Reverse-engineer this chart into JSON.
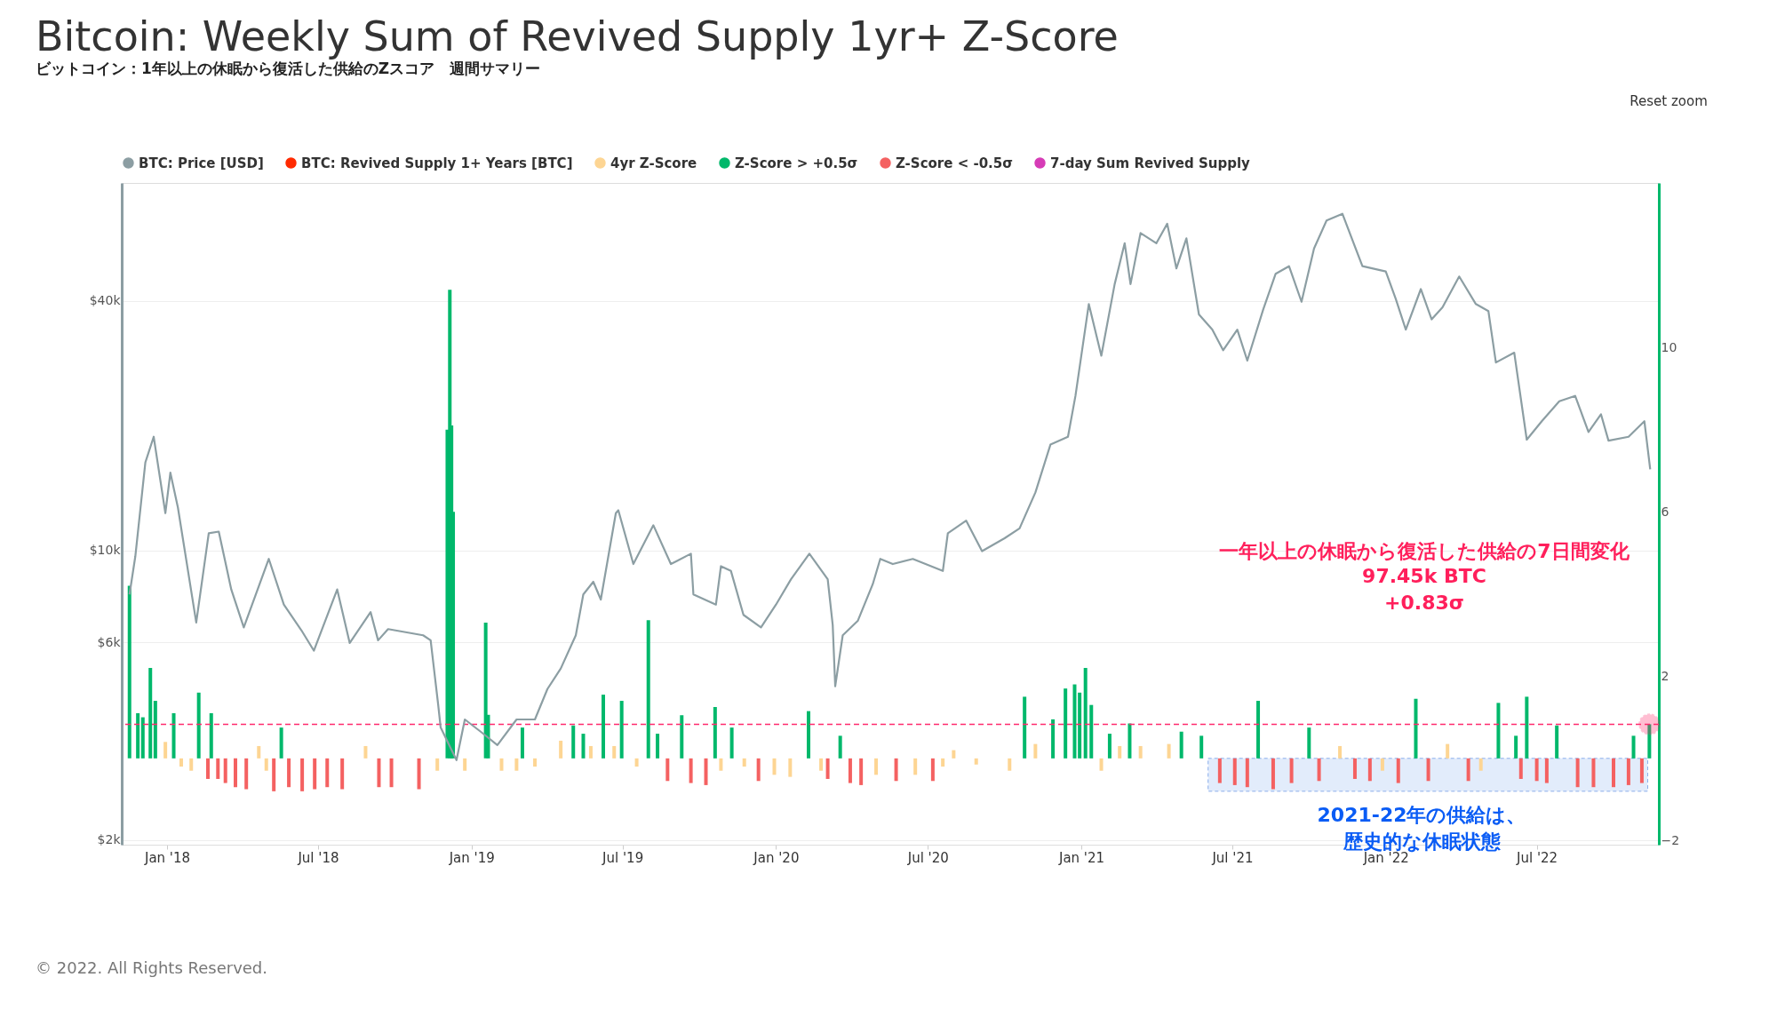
{
  "chart_data": {
    "type": "line",
    "title": "Bitcoin: Weekly Sum of Revived Supply 1yr+ Z-Score",
    "subtitle": "ビットコイン：1年以上の休眠から復活した供給のZスコア　週間サマリー",
    "series": [
      {
        "name": "BTC: Price [USD]",
        "color": "#8c9ea3",
        "x": [
          "2017-11-17",
          "2017-11-24",
          "2017-12-06",
          "2017-12-16",
          "2017-12-30",
          "2018-01-05",
          "2018-01-14",
          "2018-02-05",
          "2018-02-20",
          "2018-03-04",
          "2018-03-19",
          "2018-04-03",
          "2018-05-03",
          "2018-05-21",
          "2018-06-11",
          "2018-06-26",
          "2018-07-24",
          "2018-08-08",
          "2018-09-02",
          "2018-09-11",
          "2018-09-23",
          "2018-11-04",
          "2018-11-13",
          "2018-11-22",
          "2018-11-25",
          "2018-12-14",
          "2018-12-24",
          "2019-01-13",
          "2019-02-01",
          "2019-02-24",
          "2019-03-18",
          "2019-04-02",
          "2019-04-18",
          "2019-05-06",
          "2019-05-15",
          "2019-05-27",
          "2019-06-05",
          "2019-06-23",
          "2019-06-26",
          "2019-07-14",
          "2019-08-07",
          "2019-08-28",
          "2019-09-21",
          "2019-09-24",
          "2019-10-21",
          "2019-10-27",
          "2019-11-08",
          "2019-11-23",
          "2019-12-14",
          "2020-01-01",
          "2020-01-19",
          "2020-02-10",
          "2020-03-03",
          "2020-03-09",
          "2020-03-12",
          "2020-03-21",
          "2020-04-08",
          "2020-04-26",
          "2020-05-05",
          "2020-05-20",
          "2020-06-13",
          "2020-07-19",
          "2020-07-25",
          "2020-08-16",
          "2020-09-04",
          "2020-10-01",
          "2020-10-19",
          "2020-11-07",
          "2020-11-25",
          "2020-12-16",
          "2020-12-25",
          "2021-01-10",
          "2021-01-25",
          "2021-02-10",
          "2021-02-22",
          "2021-03-01",
          "2021-03-13",
          "2021-04-01",
          "2021-04-14",
          "2021-04-25",
          "2021-05-07",
          "2021-05-22",
          "2021-06-07",
          "2021-06-20",
          "2021-07-07",
          "2021-07-19",
          "2021-08-07",
          "2021-08-22",
          "2021-09-07",
          "2021-09-22",
          "2021-10-07",
          "2021-10-22",
          "2021-11-10",
          "2021-12-04",
          "2022-01-01",
          "2022-01-13",
          "2022-01-25",
          "2022-02-12",
          "2022-02-25",
          "2022-03-10",
          "2022-03-30",
          "2022-04-19",
          "2022-05-04",
          "2022-05-13",
          "2022-06-04",
          "2022-06-19",
          "2022-07-07",
          "2022-07-28",
          "2022-08-16",
          "2022-09-01",
          "2022-09-16",
          "2022-09-25",
          "2022-10-19",
          "2022-11-07",
          "2022-11-14"
        ],
        "values": [
          7830,
          9680,
          16300,
          18800,
          12300,
          15400,
          12700,
          6700,
          11000,
          11100,
          8050,
          6520,
          9540,
          7400,
          6420,
          5730,
          8050,
          5980,
          7100,
          6070,
          6460,
          6240,
          6070,
          4250,
          3740,
          3120,
          3910,
          3640,
          3390,
          3910,
          3910,
          4630,
          5190,
          6240,
          7830,
          8400,
          7610,
          12300,
          12500,
          9270,
          11500,
          9270,
          9820,
          7830,
          7400,
          9160,
          8920,
          6990,
          6520,
          7400,
          8520,
          9820,
          8520,
          6610,
          4700,
          6240,
          6760,
          8290,
          9540,
          9270,
          9540,
          8920,
          11000,
          11800,
          9960,
          10700,
          11300,
          13800,
          18000,
          18800,
          23600,
          39300,
          29500,
          43900,
          55100,
          43900,
          58300,
          55100,
          61400,
          47900,
          56600,
          37100,
          34100,
          30400,
          34100,
          28700,
          38100,
          46500,
          48500,
          39800,
          53500,
          62500,
          64900,
          48500,
          47100,
          40400,
          34100,
          42700,
          36100,
          38600,
          45800,
          39300,
          37800,
          28400,
          30000,
          18500,
          20500,
          22900,
          23600,
          19300,
          21300,
          18400,
          18800,
          20500,
          15700
        ]
      },
      {
        "name": "BTC: Revived Supply 1+ Years [BTC]",
        "type": "line",
        "axis": "y2",
        "color": "#ff2a00"
      },
      {
        "name": "4yr Z-Score",
        "type": "bar",
        "axis": "y2",
        "color": "#fdd593",
        "x": [
          "2017-12-30",
          "2018-01-18",
          "2018-01-30",
          "2018-04-21",
          "2018-04-30",
          "2018-08-27",
          "2018-11-21",
          "2018-12-24",
          "2019-02-06",
          "2019-02-24",
          "2019-03-18",
          "2019-04-18",
          "2019-05-24",
          "2019-06-21",
          "2019-07-18",
          "2019-10-27",
          "2019-11-24",
          "2019-12-30",
          "2020-01-18",
          "2020-02-24",
          "2020-04-30",
          "2020-06-16",
          "2020-07-19",
          "2020-08-01",
          "2020-08-28",
          "2020-10-07",
          "2020-11-07",
          "2021-01-25",
          "2021-02-16",
          "2021-03-13",
          "2021-04-16",
          "2021-11-07",
          "2021-12-28",
          "2022-03-16",
          "2022-04-25"
        ],
        "values": [
          0.4,
          -0.2,
          -0.3,
          0.3,
          -0.3,
          0.3,
          -0.3,
          -0.3,
          -0.3,
          -0.3,
          -0.2,
          0.43,
          0.3,
          0.3,
          -0.2,
          -0.3,
          -0.2,
          -0.4,
          -0.45,
          -0.3,
          -0.4,
          -0.4,
          -0.2,
          0.2,
          -0.15,
          -0.3,
          0.35,
          -0.3,
          0.3,
          0.3,
          0.35,
          0.3,
          -0.3,
          0.35,
          -0.3
        ]
      },
      {
        "name": "Z-Score > +0.5σ",
        "type": "bar",
        "axis": "y2",
        "color": "#00b86b",
        "x": [
          "2017-11-17",
          "2017-11-27",
          "2017-12-03",
          "2017-12-12",
          "2017-12-18",
          "2018-01-09",
          "2018-02-08",
          "2018-02-23",
          "2018-05-18",
          "2018-12-01",
          "2018-12-03",
          "2018-12-06",
          "2018-12-08",
          "2018-12-10",
          "2019-01-18",
          "2019-01-21",
          "2019-03-03",
          "2019-05-03",
          "2019-05-15",
          "2019-06-08",
          "2019-06-30",
          "2019-08-01",
          "2019-08-12",
          "2019-09-10",
          "2019-10-20",
          "2019-11-09",
          "2020-02-09",
          "2020-03-18",
          "2020-10-25",
          "2020-11-28",
          "2020-12-13",
          "2020-12-24",
          "2020-12-30",
          "2021-01-06",
          "2021-01-13",
          "2021-02-04",
          "2021-02-28",
          "2021-05-01",
          "2021-05-25",
          "2021-08-01",
          "2021-10-01",
          "2022-02-06",
          "2022-05-16",
          "2022-06-06",
          "2022-06-19",
          "2022-07-25",
          "2022-10-25",
          "2022-11-13"
        ],
        "values": [
          4.2,
          1.1,
          1.0,
          2.2,
          1.4,
          1.1,
          1.6,
          1.1,
          0.75,
          null,
          8.0,
          11.4,
          8.1,
          6.0,
          3.3,
          1.06,
          0.75,
          0.8,
          0.6,
          1.55,
          1.4,
          3.36,
          0.6,
          1.05,
          1.25,
          0.75,
          1.15,
          0.55,
          1.5,
          0.95,
          1.7,
          1.8,
          1.6,
          2.2,
          1.3,
          0.6,
          0.85,
          0.65,
          0.55,
          1.4,
          0.75,
          1.45,
          1.35,
          0.55,
          1.5,
          0.8,
          0.55,
          0.83
        ]
      },
      {
        "name": "Z-Score < -0.5σ",
        "type": "bar",
        "axis": "y2",
        "color": "#f46161",
        "x": [
          "2018-02-19",
          "2018-03-03",
          "2018-03-12",
          "2018-03-24",
          "2018-04-06",
          "2018-05-09",
          "2018-05-27",
          "2018-06-12",
          "2018-06-27",
          "2018-07-12",
          "2018-07-30",
          "2018-09-12",
          "2018-09-27",
          "2018-10-30",
          "2019-08-24",
          "2019-09-21",
          "2019-10-09",
          "2019-12-11",
          "2020-03-03",
          "2020-03-30",
          "2020-04-12",
          "2020-05-24",
          "2020-07-07",
          "2021-06-16",
          "2021-07-04",
          "2021-07-19",
          "2021-08-19",
          "2021-09-10",
          "2021-10-13",
          "2021-11-25",
          "2021-12-13",
          "2022-01-16",
          "2022-02-21",
          "2022-04-10",
          "2022-06-12",
          "2022-07-01",
          "2022-07-13",
          "2022-08-19",
          "2022-09-07",
          "2022-10-01",
          "2022-10-19",
          "2022-11-04"
        ],
        "values": [
          -0.5,
          -0.5,
          -0.6,
          -0.7,
          -0.75,
          -0.8,
          -0.7,
          -0.8,
          -0.75,
          -0.7,
          -0.75,
          -0.7,
          -0.7,
          -0.75,
          -0.55,
          -0.6,
          -0.65,
          -0.55,
          -0.5,
          -0.6,
          -0.65,
          -0.55,
          -0.55,
          -0.6,
          -0.65,
          -0.7,
          -0.75,
          -0.6,
          -0.55,
          -0.5,
          -0.55,
          -0.6,
          -0.55,
          -0.55,
          -0.5,
          -0.55,
          -0.6,
          -0.7,
          -0.7,
          -0.7,
          -0.65,
          -0.6
        ]
      },
      {
        "name": "7-day Sum Revived Supply",
        "type": "line",
        "axis": "y2",
        "color": "#d63cb6"
      },
      {
        "type": "scatter",
        "axis": "y2",
        "color": "#ff2a6d",
        "x": [
          "2022-11-13"
        ],
        "values": [
          0.83
        ]
      }
    ],
    "xlim": [
      "2017-11-13",
      "2022-11-19"
    ],
    "xticks": [
      {
        "value": "2018-01-01",
        "label": "Jan '18"
      },
      {
        "value": "2018-07-01",
        "label": "Jul '18"
      },
      {
        "value": "2019-01-01",
        "label": "Jan '19"
      },
      {
        "value": "2019-07-01",
        "label": "Jul '19"
      },
      {
        "value": "2020-01-01",
        "label": "Jan '20"
      },
      {
        "value": "2020-07-01",
        "label": "Jul '20"
      },
      {
        "value": "2021-01-01",
        "label": "Jan '21"
      },
      {
        "value": "2021-07-01",
        "label": "Jul '21"
      },
      {
        "value": "2022-01-01",
        "label": "Jan '22"
      },
      {
        "value": "2022-07-01",
        "label": "Jul '22"
      }
    ],
    "ylim": [
      1950,
      77000
    ],
    "yticks": [
      {
        "value": 2000,
        "label": "$2k"
      },
      {
        "value": 6000,
        "label": "$6k"
      },
      {
        "value": 10000,
        "label": "$10k"
      },
      {
        "value": 40000,
        "label": "$40k"
      }
    ],
    "y2lim": [
      -2.1,
      14
    ],
    "y2ticks": [
      -2,
      2,
      6,
      10
    ],
    "log": "y",
    "grid": "y",
    "legend": "top",
    "ref_lines": [
      {
        "axis": "y2",
        "value": 0.83,
        "color": "#ff2a6d",
        "line_style": "dashed"
      }
    ],
    "bands": [
      {
        "axis": "x",
        "from": "2021-06-02",
        "to": "2022-11-11",
        "color": "#dce8fb"
      }
    ],
    "annotations": [
      "一年以上の休眠から復活した供給の7日間変化",
      "97.45k BTC",
      "+0.83σ",
      "2021-22年の供給は、",
      "歴史的な休眠状態",
      "Reset zoom",
      "© 2022. All Rights Reserved."
    ]
  }
}
